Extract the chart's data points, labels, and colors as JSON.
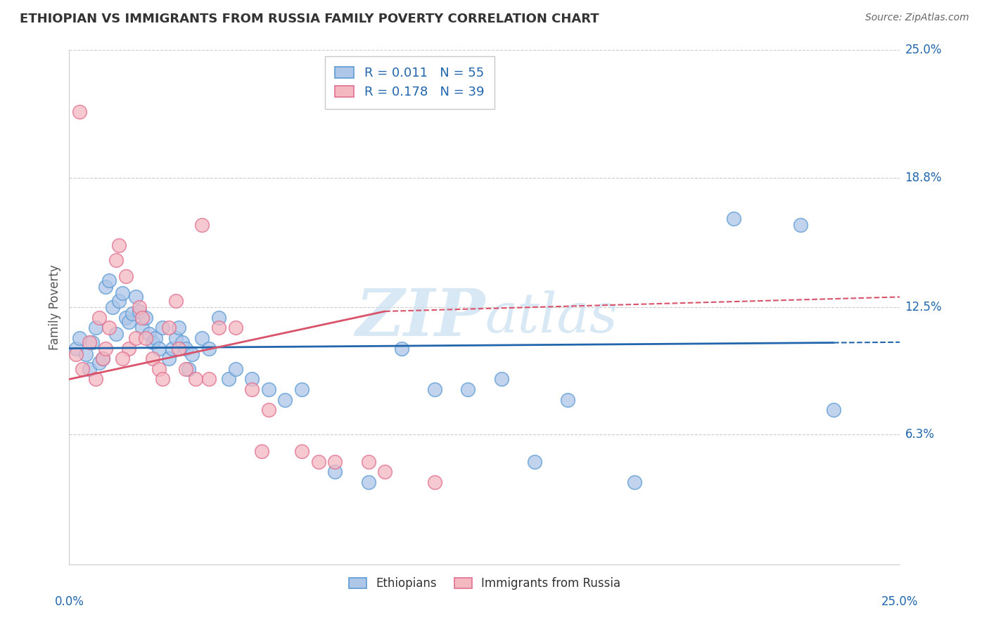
{
  "title": "ETHIOPIAN VS IMMIGRANTS FROM RUSSIA FAMILY POVERTY CORRELATION CHART",
  "source": "Source: ZipAtlas.com",
  "ylabel": "Family Poverty",
  "xmin": 0.0,
  "xmax": 25.0,
  "ymin": 0.0,
  "ymax": 25.0,
  "ethiopian_R": 0.011,
  "ethiopian_N": 55,
  "russia_R": 0.178,
  "russia_N": 39,
  "legend_label_1": "Ethiopians",
  "legend_label_2": "Immigrants from Russia",
  "blue_scatter_color": "#aec6e8",
  "blue_edge_color": "#5b9bd5",
  "pink_scatter_color": "#f4b8c1",
  "pink_edge_color": "#e07090",
  "blue_line_color": "#2166ac",
  "pink_line_color": "#d9536a",
  "watermark_color": "#c8dff0",
  "gridline_color": "#cccccc",
  "right_label_color": "#2166ac",
  "title_color": "#333333",
  "source_color": "#666666",
  "ylabel_color": "#555555",
  "ethiopians_x": [
    0.2,
    0.3,
    0.5,
    0.6,
    0.7,
    0.8,
    0.9,
    1.0,
    1.1,
    1.2,
    1.3,
    1.4,
    1.5,
    1.6,
    1.7,
    1.8,
    1.9,
    2.0,
    2.1,
    2.2,
    2.3,
    2.4,
    2.5,
    2.6,
    2.7,
    2.8,
    3.0,
    3.1,
    3.2,
    3.3,
    3.4,
    3.5,
    3.6,
    3.7,
    4.0,
    4.2,
    4.5,
    4.8,
    5.0,
    5.5,
    6.0,
    6.5,
    7.0,
    8.0,
    9.0,
    10.0,
    11.0,
    12.0,
    13.0,
    14.0,
    15.0,
    17.0,
    20.0,
    22.0,
    23.0
  ],
  "ethiopians_y": [
    10.5,
    11.0,
    10.2,
    9.5,
    10.8,
    11.5,
    9.8,
    10.0,
    13.5,
    13.8,
    12.5,
    11.2,
    12.8,
    13.2,
    12.0,
    11.8,
    12.2,
    13.0,
    12.3,
    11.5,
    12.0,
    11.2,
    10.8,
    11.0,
    10.5,
    11.5,
    10.0,
    10.5,
    11.0,
    11.5,
    10.8,
    10.5,
    9.5,
    10.2,
    11.0,
    10.5,
    12.0,
    9.0,
    9.5,
    9.0,
    8.5,
    8.0,
    8.5,
    4.5,
    4.0,
    10.5,
    8.5,
    8.5,
    9.0,
    5.0,
    8.0,
    4.0,
    16.8,
    16.5,
    7.5
  ],
  "russia_x": [
    0.2,
    0.4,
    0.6,
    0.8,
    1.0,
    1.2,
    1.4,
    1.5,
    1.7,
    1.8,
    2.0,
    2.1,
    2.3,
    2.5,
    2.7,
    3.0,
    3.2,
    3.5,
    3.8,
    4.0,
    4.5,
    5.0,
    5.5,
    6.0,
    7.0,
    8.0,
    9.0,
    0.3,
    0.9,
    1.1,
    1.6,
    2.2,
    2.8,
    3.3,
    4.2,
    5.8,
    7.5,
    9.5,
    11.0
  ],
  "russia_y": [
    10.2,
    9.5,
    10.8,
    9.0,
    10.0,
    11.5,
    14.8,
    15.5,
    14.0,
    10.5,
    11.0,
    12.5,
    11.0,
    10.0,
    9.5,
    11.5,
    12.8,
    9.5,
    9.0,
    16.5,
    11.5,
    11.5,
    8.5,
    7.5,
    5.5,
    5.0,
    5.0,
    22.0,
    12.0,
    10.5,
    10.0,
    12.0,
    9.0,
    10.5,
    9.0,
    5.5,
    5.0,
    4.5,
    4.0
  ],
  "eth_line_start_y": 10.5,
  "eth_line_end_y": 10.8,
  "rus_line_start_y": 9.0,
  "rus_line_end_solid_x": 9.5,
  "rus_line_end_solid_y": 12.3,
  "rus_line_end_dash_y": 13.0
}
